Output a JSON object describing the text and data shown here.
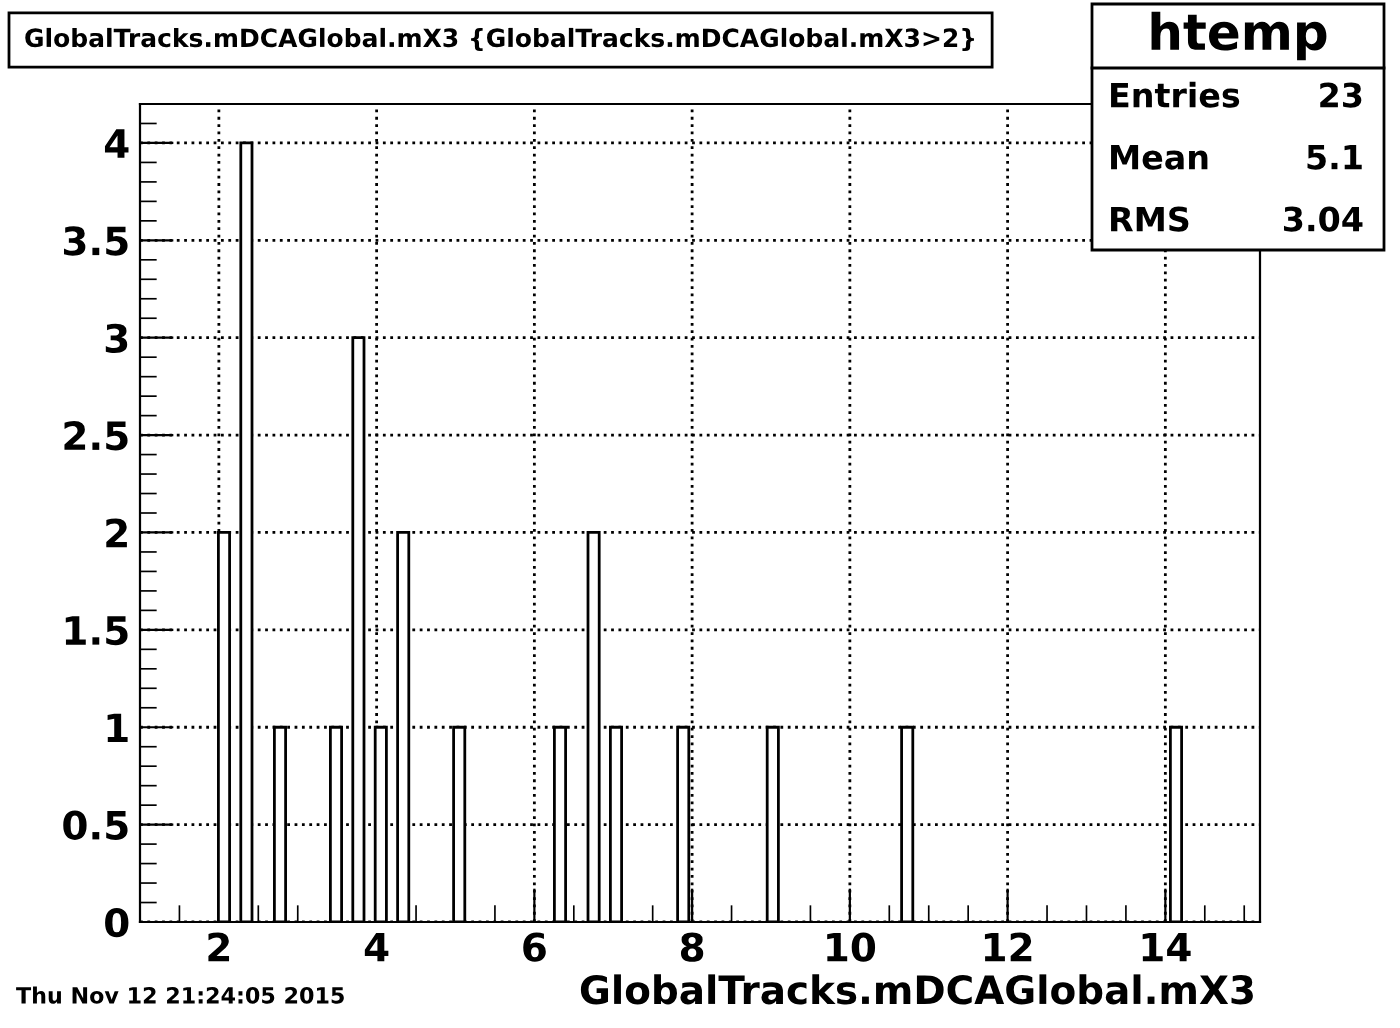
{
  "chart_data": {
    "type": "histogram",
    "title": "GlobalTracks.mDCAGlobal.mX3 {GlobalTracks.mDCAGlobal.mX3>2}",
    "xlabel": "GlobalTracks.mDCAGlobal.mX3",
    "bins": [
      1.0,
      1.142,
      1.284,
      1.426,
      1.568,
      1.71,
      1.852,
      1.994,
      2.136,
      2.278,
      2.42,
      2.562,
      2.704,
      2.846,
      2.988,
      3.13,
      3.272,
      3.414,
      3.556,
      3.698,
      3.84,
      3.982,
      4.124,
      4.266,
      4.408,
      4.55,
      4.692,
      4.834,
      4.976,
      5.118,
      5.26,
      5.402,
      5.544,
      5.686,
      5.828,
      5.97,
      6.112,
      6.254,
      6.396,
      6.538,
      6.68,
      6.822,
      6.964,
      7.106,
      7.248,
      7.39,
      7.532,
      7.674,
      7.816,
      7.958,
      8.1,
      8.242,
      8.384,
      8.526,
      8.668,
      8.81,
      8.952,
      9.094,
      9.236,
      9.378,
      9.52,
      9.662,
      9.804,
      9.946,
      10.088,
      10.23,
      10.372,
      10.514,
      10.656,
      10.798,
      10.94,
      11.082,
      11.224,
      11.366,
      11.508,
      11.65,
      11.792,
      11.934,
      12.076,
      12.218,
      12.36,
      12.502,
      12.644,
      12.786,
      12.928,
      13.07,
      13.212,
      13.354,
      13.496,
      13.638,
      13.78,
      13.922,
      14.064,
      14.206,
      14.348,
      14.49,
      14.632,
      14.774,
      14.916,
      15.058,
      15.2
    ],
    "values": [
      0,
      0,
      0,
      0,
      0,
      0,
      0,
      2,
      0,
      4,
      0,
      0,
      1,
      0,
      0,
      0,
      0,
      1,
      0,
      3,
      0,
      1,
      0,
      2,
      0,
      0,
      0,
      0,
      1,
      0,
      0,
      0,
      0,
      0,
      0,
      0,
      0,
      1,
      0,
      0,
      2,
      0,
      1,
      0,
      0,
      0,
      0,
      0,
      1,
      0,
      0,
      0,
      0,
      0,
      0,
      0,
      1,
      0,
      0,
      0,
      0,
      0,
      0,
      0,
      0,
      0,
      0,
      0,
      1,
      0,
      0,
      0,
      0,
      0,
      0,
      0,
      0,
      0,
      0,
      0,
      0,
      0,
      0,
      0,
      0,
      0,
      0,
      0,
      0,
      0,
      0,
      0,
      1,
      0,
      0,
      0,
      0,
      0,
      0,
      0
    ],
    "color": "#ffffff",
    "xlim": [
      1.0,
      15.2
    ],
    "xticks": [
      2,
      4,
      6,
      8,
      10,
      12,
      14
    ],
    "ylim": [
      0,
      4.2
    ],
    "yticks": [
      0,
      0.5,
      1,
      1.5,
      2,
      2.5,
      3,
      3.5,
      4
    ],
    "grid": true,
    "annotations": [
      "Thu Nov 12 21:24:05 2015",
      "htemp",
      "Entries",
      "23",
      "Mean",
      "5.1",
      "RMS",
      "3.04"
    ]
  }
}
